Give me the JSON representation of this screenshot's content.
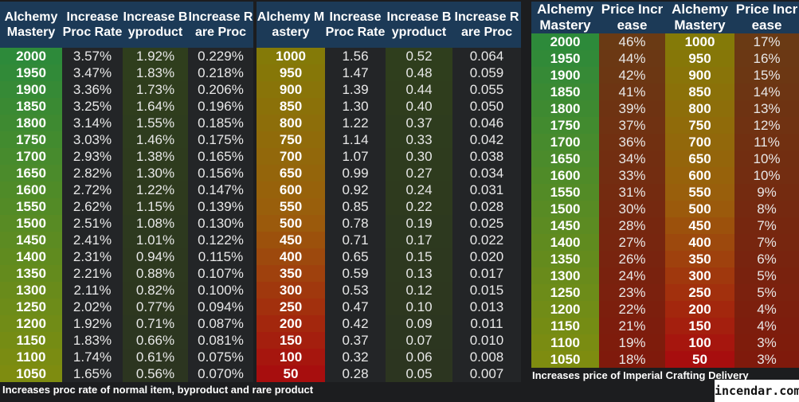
{
  "table1": {
    "headers": [
      "Alchemy Mastery",
      "Increase Proc Rate",
      "Increase Byproduct",
      "Increase Rare Proc"
    ],
    "rows": [
      [
        "2000",
        "3.57%",
        "1.92%",
        "0.229%"
      ],
      [
        "1950",
        "3.47%",
        "1.83%",
        "0.218%"
      ],
      [
        "1900",
        "3.36%",
        "1.73%",
        "0.206%"
      ],
      [
        "1850",
        "3.25%",
        "1.64%",
        "0.196%"
      ],
      [
        "1800",
        "3.14%",
        "1.55%",
        "0.185%"
      ],
      [
        "1750",
        "3.03%",
        "1.46%",
        "0.175%"
      ],
      [
        "1700",
        "2.93%",
        "1.38%",
        "0.165%"
      ],
      [
        "1650",
        "2.82%",
        "1.30%",
        "0.156%"
      ],
      [
        "1600",
        "2.72%",
        "1.22%",
        "0.147%"
      ],
      [
        "1550",
        "2.62%",
        "1.15%",
        "0.139%"
      ],
      [
        "1500",
        "2.51%",
        "1.08%",
        "0.130%"
      ],
      [
        "1450",
        "2.41%",
        "1.01%",
        "0.122%"
      ],
      [
        "1400",
        "2.31%",
        "0.94%",
        "0.115%"
      ],
      [
        "1350",
        "2.21%",
        "0.88%",
        "0.107%"
      ],
      [
        "1300",
        "2.11%",
        "0.82%",
        "0.100%"
      ],
      [
        "1250",
        "2.02%",
        "0.77%",
        "0.094%"
      ],
      [
        "1200",
        "1.92%",
        "0.71%",
        "0.087%"
      ],
      [
        "1150",
        "1.83%",
        "0.66%",
        "0.081%"
      ],
      [
        "1100",
        "1.74%",
        "0.61%",
        "0.075%"
      ],
      [
        "1050",
        "1.65%",
        "0.56%",
        "0.070%"
      ]
    ],
    "footnote": "Increases proc rate of normal item, byproduct and rare product"
  },
  "table2": {
    "headers": [
      "Alchemy Mastery",
      "Increase Proc Rate",
      "Increase Byproduct",
      "Increase Rare Proc"
    ],
    "rows": [
      [
        "1000",
        "1.56",
        "0.52",
        "0.064"
      ],
      [
        "950",
        "1.47",
        "0.48",
        "0.059"
      ],
      [
        "900",
        "1.39",
        "0.44",
        "0.055"
      ],
      [
        "850",
        "1.30",
        "0.40",
        "0.050"
      ],
      [
        "800",
        "1.22",
        "0.37",
        "0.046"
      ],
      [
        "750",
        "1.14",
        "0.33",
        "0.042"
      ],
      [
        "700",
        "1.07",
        "0.30",
        "0.038"
      ],
      [
        "650",
        "0.99",
        "0.27",
        "0.034"
      ],
      [
        "600",
        "0.92",
        "0.24",
        "0.031"
      ],
      [
        "550",
        "0.85",
        "0.22",
        "0.028"
      ],
      [
        "500",
        "0.78",
        "0.19",
        "0.025"
      ],
      [
        "450",
        "0.71",
        "0.17",
        "0.022"
      ],
      [
        "400",
        "0.65",
        "0.15",
        "0.020"
      ],
      [
        "350",
        "0.59",
        "0.13",
        "0.017"
      ],
      [
        "300",
        "0.53",
        "0.12",
        "0.015"
      ],
      [
        "250",
        "0.47",
        "0.10",
        "0.013"
      ],
      [
        "200",
        "0.42",
        "0.09",
        "0.011"
      ],
      [
        "150",
        "0.37",
        "0.07",
        "0.010"
      ],
      [
        "100",
        "0.32",
        "0.06",
        "0.008"
      ],
      [
        "50",
        "0.28",
        "0.05",
        "0.007"
      ]
    ]
  },
  "table3": {
    "headers": [
      "Alchemy Mastery",
      "Price Increase",
      "Alchemy Mastery",
      "Price Increase"
    ],
    "rows": [
      [
        "2000",
        "46%",
        "1000",
        "17%"
      ],
      [
        "1950",
        "44%",
        "950",
        "16%"
      ],
      [
        "1900",
        "42%",
        "900",
        "15%"
      ],
      [
        "1850",
        "41%",
        "850",
        "14%"
      ],
      [
        "1800",
        "39%",
        "800",
        "13%"
      ],
      [
        "1750",
        "37%",
        "750",
        "12%"
      ],
      [
        "1700",
        "36%",
        "700",
        "11%"
      ],
      [
        "1650",
        "34%",
        "650",
        "10%"
      ],
      [
        "1600",
        "33%",
        "600",
        "10%"
      ],
      [
        "1550",
        "31%",
        "550",
        "9%"
      ],
      [
        "1500",
        "30%",
        "500",
        "8%"
      ],
      [
        "1450",
        "28%",
        "450",
        "7%"
      ],
      [
        "1400",
        "27%",
        "400",
        "7%"
      ],
      [
        "1350",
        "26%",
        "350",
        "6%"
      ],
      [
        "1300",
        "24%",
        "300",
        "5%"
      ],
      [
        "1250",
        "23%",
        "250",
        "5%"
      ],
      [
        "1200",
        "22%",
        "200",
        "4%"
      ],
      [
        "1150",
        "21%",
        "150",
        "4%"
      ],
      [
        "1100",
        "19%",
        "100",
        "3%"
      ],
      [
        "1050",
        "18%",
        "50",
        "3%"
      ]
    ],
    "footnote": "Increases price of Imperial Crafting Delivery"
  },
  "brand": "incendar.com",
  "colors": {
    "header_bg": "#1c3a57",
    "page_bg": "#1c1d1f",
    "col_dark": "#222426",
    "byproduct_bg": "#2e3a1c",
    "green_top": "#2e8b3a",
    "olive_bottom": "#7d8a12",
    "gold_top": "#8a7a0a",
    "red_bottom": "#a3100e",
    "price_top": "#6b3a14",
    "price_bottom": "#7d1a0c"
  }
}
